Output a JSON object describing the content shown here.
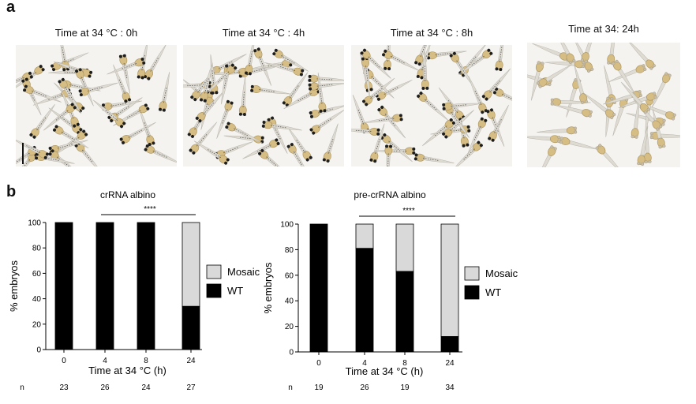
{
  "panel_a": {
    "letter": "a",
    "images": [
      {
        "title": "Time at 34 °C : 0h",
        "embryo_count": 40,
        "pigmented": true
      },
      {
        "title": "Time at 34 °C : 4h",
        "embryo_count": 40,
        "pigmented": true
      },
      {
        "title": "Time at 34 °C : 8h",
        "embryo_count": 40,
        "pigmented": true
      },
      {
        "title": "Time at 34: 24h",
        "embryo_count": 38,
        "pigmented": false
      }
    ]
  },
  "panel_b": {
    "letter": "b"
  },
  "chart_data": [
    {
      "type": "bar",
      "stacked": true,
      "title": "crRNA albino",
      "xlabel": "Time at 34 °C (h)",
      "ylabel": "% embryos",
      "ylim": [
        0,
        100
      ],
      "yticks": [
        0,
        20,
        40,
        60,
        80,
        100
      ],
      "categories": [
        "0",
        "4",
        "8",
        "24"
      ],
      "series": [
        {
          "name": "WT",
          "color": "#000000",
          "values": [
            100,
            100,
            100,
            34
          ]
        },
        {
          "name": "Mosaic",
          "color": "#d9d9d9",
          "values": [
            0,
            0,
            0,
            66
          ]
        }
      ],
      "n_label": "n",
      "n_values": [
        "23",
        "26",
        "24",
        "27"
      ],
      "significance": "****",
      "significance_span": [
        "4",
        "24"
      ],
      "legend": "right"
    },
    {
      "type": "bar",
      "stacked": true,
      "title": "pre-crRNA albino",
      "xlabel": "Time at 34 °C (h)",
      "ylabel": "% embryos",
      "ylim": [
        0,
        100
      ],
      "yticks": [
        0,
        20,
        40,
        60,
        80,
        100
      ],
      "categories": [
        "0",
        "4",
        "8",
        "24"
      ],
      "series": [
        {
          "name": "WT",
          "color": "#000000",
          "values": [
            100,
            81,
            63,
            12
          ]
        },
        {
          "name": "Mosaic",
          "color": "#d9d9d9",
          "values": [
            0,
            19,
            37,
            88
          ]
        }
      ],
      "n_label": "n",
      "n_values": [
        "19",
        "26",
        "19",
        "34"
      ],
      "significance": "****",
      "significance_span": [
        "4",
        "24"
      ],
      "legend": "right"
    }
  ]
}
